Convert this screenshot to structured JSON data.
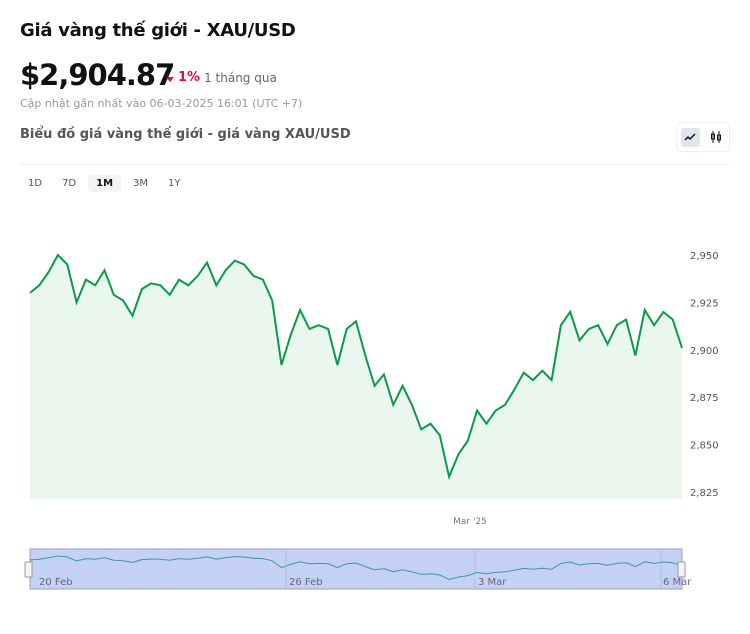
{
  "header": {
    "title": "Giá vàng thế giới - XAU/USD",
    "price": "$2,904.87",
    "change_pct": "1%",
    "change_direction": "down",
    "change_period": "1 tháng qua",
    "updated": "Cập nhật gần nhất vào 06-03-2025 16:01 (UTC +7)",
    "subtitle": "Biểu đồ giá vàng thế giới - giá vàng XAU/USD"
  },
  "chart_types": [
    {
      "icon": "line-chart-icon",
      "active": true
    },
    {
      "icon": "candlestick-icon",
      "active": false
    }
  ],
  "ranges": [
    {
      "label": "1D"
    },
    {
      "label": "7D"
    },
    {
      "label": "1M",
      "active": true
    },
    {
      "label": "3M"
    },
    {
      "label": "1Y"
    }
  ],
  "colors": {
    "line": "#0a9a4a",
    "fill": "#eaf7ee",
    "down": "#e0113a",
    "navigator": "#c5d0f5"
  },
  "chart_data": {
    "type": "area",
    "ylim": [
      2820,
      2960
    ],
    "yticks": [
      "2,825",
      "2,850",
      "2,875",
      "2,900",
      "2,925",
      "2,950"
    ],
    "xticks": [
      "Mar '25"
    ],
    "navigator_labels": [
      "20 Feb",
      "26 Feb",
      "3 Mar",
      "6 Mar"
    ],
    "values": [
      2930,
      2934,
      2941,
      2950,
      2945,
      2925,
      2937,
      2934,
      2942,
      2929,
      2926,
      2918,
      2932,
      2935,
      2934,
      2929,
      2937,
      2934,
      2939,
      2946,
      2934,
      2942,
      2947,
      2945,
      2939,
      2937,
      2926,
      2892,
      2908,
      2921,
      2911,
      2913,
      2911,
      2892,
      2911,
      2915,
      2897,
      2881,
      2887,
      2871,
      2881,
      2871,
      2858,
      2861,
      2855,
      2833,
      2845,
      2852,
      2868,
      2861,
      2868,
      2871,
      2879,
      2888,
      2884,
      2889,
      2884,
      2913,
      2920,
      2905,
      2911,
      2913,
      2903,
      2913,
      2916,
      2897,
      2921,
      2913,
      2920,
      2916,
      2901
    ]
  }
}
